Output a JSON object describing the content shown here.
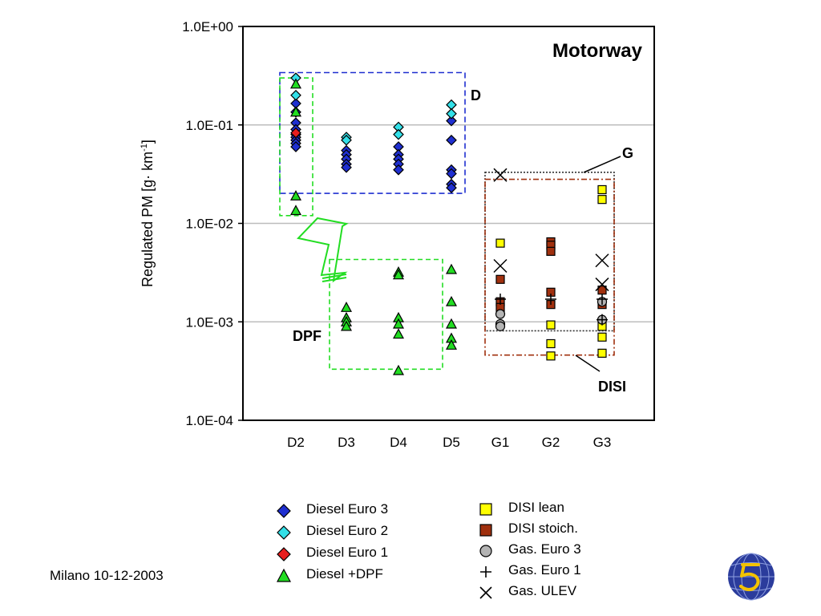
{
  "chart_data": {
    "type": "scatter",
    "title": "Motorway",
    "ylabel_main": "Regulated PM [g· km",
    "ylabel_sup": "-1",
    "ylabel_end": "]",
    "yscale": "log",
    "ylim": [
      0.0001,
      1
    ],
    "ytick_values": [
      1,
      0.1,
      0.01,
      0.001,
      0.0001
    ],
    "ytick_labels": [
      "1.0E+00",
      "1.0E-01",
      "1.0E-02",
      "1.0E-03",
      "1.0E-04"
    ],
    "categories": [
      "D2",
      "D3",
      "D4",
      "D5",
      "G1",
      "G2",
      "G3"
    ],
    "grid": "horizontal major",
    "series": [
      {
        "name": "Diesel Euro 3",
        "marker": "diamond",
        "color": "#1F2FD0",
        "points": [
          [
            "D2",
            0.165
          ],
          [
            "D2",
            0.135
          ],
          [
            "D2",
            0.105
          ],
          [
            "D2",
            0.09
          ],
          [
            "D2",
            0.08
          ],
          [
            "D2",
            0.075
          ],
          [
            "D2",
            0.07
          ],
          [
            "D2",
            0.065
          ],
          [
            "D2",
            0.06
          ],
          [
            "D3",
            0.055
          ],
          [
            "D3",
            0.05
          ],
          [
            "D3",
            0.045
          ],
          [
            "D3",
            0.04
          ],
          [
            "D3",
            0.037
          ],
          [
            "D4",
            0.06
          ],
          [
            "D4",
            0.05
          ],
          [
            "D4",
            0.045
          ],
          [
            "D4",
            0.04
          ],
          [
            "D4",
            0.035
          ],
          [
            "D5",
            0.11
          ],
          [
            "D5",
            0.07
          ],
          [
            "D5",
            0.035
          ],
          [
            "D5",
            0.032
          ],
          [
            "D5",
            0.025
          ],
          [
            "D5",
            0.023
          ]
        ]
      },
      {
        "name": "Diesel Euro 2",
        "marker": "diamond",
        "color": "#33E0E8",
        "points": [
          [
            "D2",
            0.3
          ],
          [
            "D2",
            0.2
          ],
          [
            "D3",
            0.075
          ],
          [
            "D3",
            0.07
          ],
          [
            "D4",
            0.095
          ],
          [
            "D4",
            0.08
          ],
          [
            "D5",
            0.16
          ],
          [
            "D5",
            0.13
          ]
        ]
      },
      {
        "name": "Diesel Euro 1",
        "marker": "diamond",
        "color": "#E81E1E",
        "points": [
          [
            "D2",
            0.083
          ]
        ]
      },
      {
        "name": "Diesel +DPF",
        "marker": "triangle",
        "color": "#22DD22",
        "points": [
          [
            "D2",
            0.26
          ],
          [
            "D2",
            0.135
          ],
          [
            "D2",
            0.019
          ],
          [
            "D2",
            0.0135
          ],
          [
            "D3",
            0.0014
          ],
          [
            "D3",
            0.0011
          ],
          [
            "D3",
            0.001
          ],
          [
            "D3",
            0.0009
          ],
          [
            "D4",
            0.0032
          ],
          [
            "D4",
            0.003
          ],
          [
            "D4",
            0.0011
          ],
          [
            "D4",
            0.00095
          ],
          [
            "D4",
            0.00075
          ],
          [
            "D4",
            0.00032
          ],
          [
            "D5",
            0.0034
          ],
          [
            "D5",
            0.0016
          ],
          [
            "D5",
            0.00095
          ],
          [
            "D5",
            0.00068
          ],
          [
            "D5",
            0.00058
          ]
        ]
      },
      {
        "name": "DISI lean",
        "marker": "square",
        "color": "#FFFF00",
        "points": [
          [
            "G1",
            0.0063
          ],
          [
            "G2",
            0.00093
          ],
          [
            "G2",
            0.0006
          ],
          [
            "G2",
            0.00045
          ],
          [
            "G3",
            0.022
          ],
          [
            "G3",
            0.0175
          ],
          [
            "G3",
            0.0009
          ],
          [
            "G3",
            0.0007
          ],
          [
            "G3",
            0.00048
          ]
        ]
      },
      {
        "name": "DISI stoich.",
        "marker": "square",
        "color": "#A0300E",
        "points": [
          [
            "G1",
            0.0027
          ],
          [
            "G1",
            0.0016
          ],
          [
            "G1",
            0.0014
          ],
          [
            "G2",
            0.0065
          ],
          [
            "G2",
            0.006
          ],
          [
            "G2",
            0.0052
          ],
          [
            "G2",
            0.002
          ],
          [
            "G2",
            0.0015
          ],
          [
            "G3",
            0.0021
          ],
          [
            "G3",
            0.0015
          ]
        ]
      },
      {
        "name": "Gas. Euro 3",
        "marker": "circle",
        "color": "#B4B4B4",
        "points": [
          [
            "G1",
            0.0012
          ],
          [
            "G1",
            0.00095
          ],
          [
            "G1",
            0.0009
          ],
          [
            "G3",
            0.0016
          ],
          [
            "G3",
            0.00105
          ]
        ]
      },
      {
        "name": "Gas. Euro 1",
        "marker": "plus",
        "color": "#000000",
        "points": [
          [
            "G1",
            0.0017
          ],
          [
            "G2",
            0.0017
          ],
          [
            "G3",
            0.0017
          ],
          [
            "G3",
            0.00105
          ]
        ]
      },
      {
        "name": "Gas. ULEV",
        "marker": "x",
        "color": "#000000",
        "points": [
          [
            "G1",
            0.031
          ],
          [
            "G1",
            0.0037
          ],
          [
            "G3",
            0.0042
          ],
          [
            "G3",
            0.0024
          ]
        ]
      }
    ],
    "annotations": {
      "D": "D",
      "DPF": "DPF",
      "G": "G",
      "DISI": "DISI"
    }
  },
  "legend_left": [
    {
      "label": "Diesel Euro 3",
      "marker": "diamond",
      "color": "#1F2FD0"
    },
    {
      "label": "Diesel Euro 2",
      "marker": "diamond",
      "color": "#33E0E8"
    },
    {
      "label": "Diesel Euro 1",
      "marker": "diamond",
      "color": "#E81E1E"
    },
    {
      "label": "Diesel +DPF",
      "marker": "triangle",
      "color": "#22DD22"
    }
  ],
  "legend_right": [
    {
      "label": "DISI lean",
      "marker": "square",
      "color": "#FFFF00"
    },
    {
      "label": "DISI stoich.",
      "marker": "square",
      "color": "#A0300E"
    },
    {
      "label": "Gas. Euro 3",
      "marker": "circle",
      "color": "#B4B4B4"
    },
    {
      "label": "Gas. Euro 1",
      "marker": "plus",
      "color": "#000000"
    },
    {
      "label": "Gas. ULEV",
      "marker": "x",
      "color": "#000000"
    }
  ],
  "footer": {
    "date": "Milano 10-12-2003"
  },
  "logo": {
    "icon": "globe-5-logo-icon",
    "color": "#2B3C9C",
    "accent": "#F2C200"
  }
}
